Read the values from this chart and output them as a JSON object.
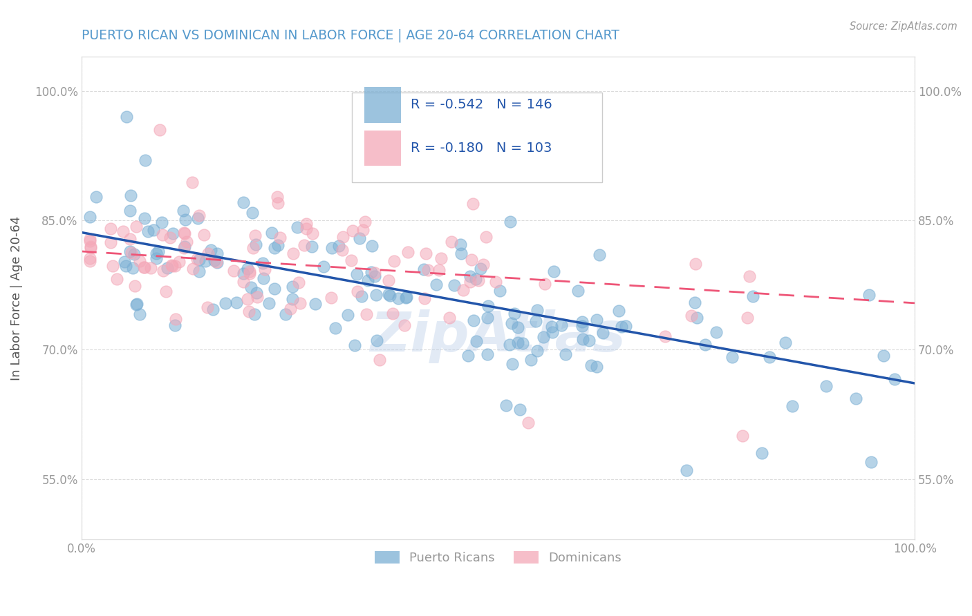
{
  "title": "PUERTO RICAN VS DOMINICAN IN LABOR FORCE | AGE 20-64 CORRELATION CHART",
  "source": "Source: ZipAtlas.com",
  "ylabel_label": "In Labor Force | Age 20-64",
  "xlim": [
    0.0,
    1.0
  ],
  "ylim": [
    0.48,
    1.04
  ],
  "blue_R": -0.542,
  "blue_N": 146,
  "pink_R": -0.18,
  "pink_N": 103,
  "blue_color": "#7BAFD4",
  "pink_color": "#F4A8B8",
  "blue_line_color": "#2255AA",
  "pink_line_color": "#EE5577",
  "watermark": "ZipAtlas",
  "legend_labels": [
    "Puerto Ricans",
    "Dominicans"
  ],
  "background_color": "#FFFFFF",
  "grid_color": "#CCCCCC",
  "title_color": "#5599CC",
  "source_color": "#999999",
  "axis_label_color": "#555555",
  "tick_label_color": "#999999",
  "ytick_positions": [
    0.55,
    0.7,
    0.85,
    1.0
  ],
  "ytick_labels": [
    "55.0%",
    "70.0%",
    "85.0%",
    "100.0%"
  ],
  "xtick_positions": [
    0.0,
    1.0
  ],
  "xtick_labels": [
    "0.0%",
    "100.0%"
  ],
  "blue_seed": 123,
  "pink_seed": 456,
  "blue_intercept": 0.835,
  "blue_slope": -0.175,
  "pink_intercept": 0.815,
  "pink_slope": -0.06
}
